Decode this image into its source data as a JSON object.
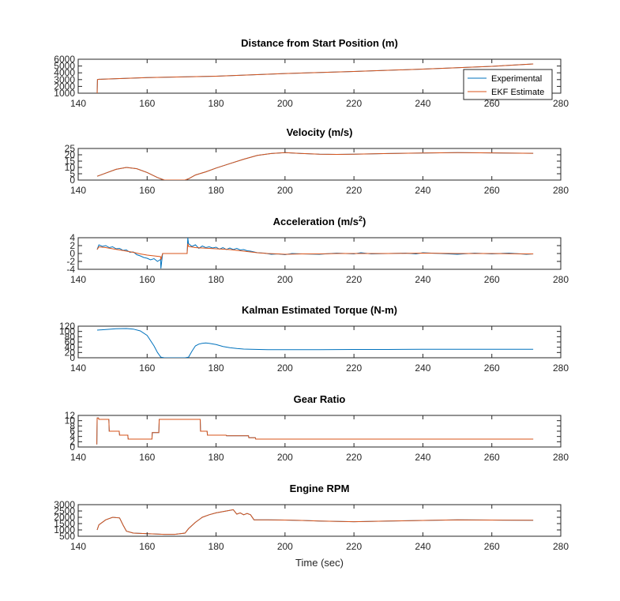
{
  "colors": {
    "experimental": "#0072bd",
    "ekf": "#d95319",
    "axis": "#262626"
  },
  "legend": {
    "placement": "bottom-right of first subplot",
    "entries": [
      "Experimental",
      "EKF Estimate"
    ]
  },
  "chart_data": [
    {
      "type": "line",
      "title": "Distance from Start Position (m)",
      "xlim": [
        140,
        280
      ],
      "ylim": [
        1000,
        6000
      ],
      "xticks": [
        140,
        160,
        180,
        200,
        220,
        240,
        260,
        280
      ],
      "yticks": [
        1000,
        2000,
        3000,
        4000,
        5000,
        6000
      ],
      "series": [
        {
          "name": "Experimental",
          "x": [
            145.5,
            145.6,
            146,
            160,
            180,
            200,
            220,
            240,
            260,
            272
          ],
          "y": [
            1000,
            3000,
            3050,
            3300,
            3500,
            3900,
            4200,
            4550,
            4950,
            5300
          ]
        },
        {
          "name": "EKF Estimate",
          "x": [
            145.5,
            145.6,
            146,
            160,
            180,
            200,
            220,
            240,
            260,
            272
          ],
          "y": [
            1000,
            3000,
            3050,
            3300,
            3500,
            3900,
            4200,
            4550,
            4950,
            5300
          ]
        }
      ]
    },
    {
      "type": "line",
      "title": "Velocity (m/s)",
      "xlim": [
        140,
        280
      ],
      "ylim": [
        0,
        25
      ],
      "xticks": [
        140,
        160,
        180,
        200,
        220,
        240,
        260,
        280
      ],
      "yticks": [
        0,
        5,
        10,
        15,
        20,
        25
      ],
      "series": [
        {
          "name": "Experimental",
          "x": [
            145.5,
            148,
            151,
            154,
            157,
            160,
            163,
            165,
            168,
            171,
            172,
            174,
            177,
            180,
            184,
            188,
            192,
            196,
            200,
            205,
            210,
            215,
            220,
            230,
            240,
            250,
            260,
            272
          ],
          "y": [
            3,
            5.5,
            8.5,
            10,
            9,
            6,
            2,
            0,
            0,
            0,
            1,
            4,
            6.5,
            9.5,
            13,
            16.5,
            19.5,
            21,
            21.7,
            21,
            20.5,
            20.3,
            20.5,
            21,
            21.4,
            21.7,
            21.5,
            21.2
          ]
        },
        {
          "name": "EKF Estimate",
          "x": [
            145.5,
            148,
            151,
            154,
            157,
            160,
            163,
            165,
            168,
            171,
            172,
            174,
            177,
            180,
            184,
            188,
            192,
            196,
            200,
            205,
            210,
            215,
            220,
            230,
            240,
            250,
            260,
            272
          ],
          "y": [
            3,
            5.5,
            8.5,
            10,
            9,
            6,
            2,
            0,
            0,
            0,
            1,
            4,
            6.5,
            9.5,
            13,
            16.5,
            19.5,
            21,
            21.7,
            21,
            20.5,
            20.3,
            20.5,
            21,
            21.4,
            21.7,
            21.5,
            21.2
          ]
        }
      ]
    },
    {
      "type": "line",
      "title": "Acceleration (m/s",
      "title_sup": "2",
      "title_tail": ")",
      "xlim": [
        140,
        280
      ],
      "ylim": [
        -4,
        4
      ],
      "xticks": [
        140,
        160,
        180,
        200,
        220,
        240,
        260,
        280
      ],
      "yticks": [
        -4,
        -2,
        0,
        2,
        4
      ],
      "series": [
        {
          "name": "Experimental",
          "x": [
            145.5,
            146,
            147,
            148,
            149,
            150,
            151,
            152,
            153,
            154,
            155,
            156,
            157,
            158,
            159,
            160,
            161,
            162,
            163,
            163.9,
            164,
            164.5,
            168,
            171.6,
            171.8,
            172,
            173,
            174,
            175,
            176,
            177,
            178,
            179,
            180,
            181,
            182,
            183,
            184,
            185,
            186,
            187,
            188,
            189,
            190,
            191,
            192,
            194,
            196,
            198,
            200,
            202,
            205,
            210,
            215,
            220,
            222,
            225,
            230,
            235,
            238,
            240,
            245,
            250,
            255,
            260,
            265,
            270,
            272
          ],
          "y": [
            1,
            2.2,
            1.8,
            2.0,
            1.5,
            1.7,
            1.2,
            1.3,
            0.8,
            0.9,
            0.3,
            0.4,
            -0.3,
            -0.6,
            -1.0,
            -1.2,
            -1.6,
            -1.3,
            -2.0,
            -1.5,
            -3.8,
            0,
            0,
            0,
            4,
            2.5,
            1.8,
            2.2,
            1.3,
            1.9,
            1.5,
            1.7,
            1.4,
            1.6,
            1.1,
            1.5,
            1.0,
            1.4,
            1.0,
            1.3,
            0.9,
            1.0,
            0.7,
            0.6,
            0.4,
            0.2,
            0.1,
            -0.2,
            -0.1,
            -0.3,
            0,
            -0.1,
            -0.2,
            0.1,
            -0.1,
            0.2,
            -0.1,
            0,
            0.1,
            -0.1,
            0.2,
            0,
            -0.2,
            0.1,
            -0.1,
            0.1,
            -0.2,
            -0.1
          ]
        },
        {
          "name": "EKF Estimate",
          "x": [
            145.5,
            146,
            148,
            150,
            152,
            154,
            156,
            158,
            160,
            162,
            163.9,
            164,
            164.5,
            168,
            171.6,
            171.8,
            172,
            174,
            176,
            178,
            180,
            182,
            184,
            186,
            188,
            190,
            192,
            195,
            198,
            200,
            205,
            210,
            215,
            220,
            230,
            240,
            250,
            260,
            270,
            272
          ],
          "y": [
            1,
            1.7,
            1.5,
            1.2,
            0.9,
            0.6,
            0.3,
            -0.1,
            -0.4,
            -0.6,
            -0.8,
            -1.6,
            0,
            0,
            0,
            2.5,
            1.8,
            1.5,
            1.4,
            1.3,
            1.2,
            1.1,
            1.0,
            0.8,
            0.6,
            0.4,
            0.2,
            0,
            -0.1,
            -0.2,
            -0.1,
            -0.1,
            0,
            0,
            0,
            0.1,
            0,
            0,
            -0.1,
            -0.1
          ]
        }
      ]
    },
    {
      "type": "line",
      "title": "Kalman Estimated Torque (N-m)",
      "xlim": [
        140,
        280
      ],
      "ylim": [
        0,
        120
      ],
      "xticks": [
        140,
        160,
        180,
        200,
        220,
        240,
        260,
        280
      ],
      "yticks": [
        0,
        20,
        40,
        60,
        80,
        100,
        120
      ],
      "series": [
        {
          "name": "Experimental",
          "x": [
            145.5,
            148,
            151,
            154,
            156,
            158,
            160,
            162,
            163,
            164,
            165,
            168,
            171,
            172,
            173,
            174,
            175,
            176,
            177,
            178,
            180,
            182,
            184,
            186,
            188,
            190,
            195,
            200,
            210,
            220,
            230,
            240,
            250,
            260,
            272
          ],
          "y": [
            105,
            107,
            110,
            111,
            109,
            102,
            85,
            45,
            20,
            2,
            0,
            0,
            0,
            2,
            25,
            45,
            52,
            55,
            56,
            55,
            50,
            43,
            38,
            35,
            33,
            32,
            31,
            31,
            31,
            31.5,
            31.5,
            32,
            32,
            32,
            32
          ]
        }
      ]
    },
    {
      "type": "line",
      "title": "Gear Ratio",
      "xlim": [
        140,
        280
      ],
      "ylim": [
        0,
        12
      ],
      "xticks": [
        140,
        160,
        180,
        200,
        220,
        240,
        260,
        280
      ],
      "yticks": [
        0,
        2,
        4,
        6,
        8,
        10,
        12
      ],
      "series": [
        {
          "name": "Experimental",
          "x": [
            145.4,
            145.5,
            145.9,
            146,
            148.9,
            149,
            151.9,
            152,
            154.4,
            154.5,
            161.4,
            161.5,
            163.4,
            163.5,
            175.4,
            175.5,
            177.4,
            177.5,
            182.9,
            183,
            189.4,
            189.5,
            191.4,
            191.5,
            272
          ],
          "y": [
            1,
            11,
            11,
            10.5,
            10.5,
            6,
            6,
            4.5,
            4.5,
            3,
            3,
            5.5,
            5.5,
            10.5,
            10.5,
            6,
            6,
            4.5,
            4.5,
            4.3,
            4.3,
            3.5,
            3.5,
            3,
            3
          ]
        },
        {
          "name": "EKF Estimate",
          "x": [
            145.4,
            145.5,
            145.9,
            146,
            148.9,
            149,
            151.9,
            152,
            154.4,
            154.5,
            161.4,
            161.5,
            163.4,
            163.5,
            175.4,
            175.5,
            177.4,
            177.5,
            182.9,
            183,
            189.4,
            189.5,
            191.4,
            191.5,
            272
          ],
          "y": [
            1,
            11,
            11,
            10.5,
            10.5,
            6,
            6,
            4.5,
            4.5,
            3,
            3,
            5.5,
            5.5,
            10.5,
            10.5,
            6,
            6,
            4.5,
            4.5,
            4.3,
            4.3,
            3.5,
            3.5,
            3,
            3
          ]
        }
      ]
    },
    {
      "type": "line",
      "title": "Engine RPM",
      "xlabel": "Time (sec)",
      "xlim": [
        140,
        280
      ],
      "ylim": [
        500,
        3000
      ],
      "xticks": [
        140,
        160,
        180,
        200,
        220,
        240,
        260,
        280
      ],
      "yticks": [
        500,
        1000,
        1500,
        2000,
        2500,
        3000
      ],
      "series": [
        {
          "name": "Experimental",
          "x": [
            145.5,
            146,
            148,
            150,
            152,
            153,
            154,
            156,
            160,
            165,
            168,
            171,
            172,
            174,
            176,
            178,
            180,
            183,
            185,
            186,
            187,
            188,
            189,
            190,
            191,
            192,
            195,
            200,
            205,
            210,
            220,
            230,
            240,
            250,
            260,
            272
          ],
          "y": [
            1000,
            1400,
            1800,
            2000,
            1950,
            1400,
            900,
            750,
            700,
            650,
            650,
            750,
            1100,
            1600,
            2000,
            2200,
            2350,
            2500,
            2600,
            2250,
            2350,
            2200,
            2300,
            2200,
            1800,
            1800,
            1800,
            1780,
            1750,
            1700,
            1650,
            1700,
            1750,
            1800,
            1780,
            1760
          ]
        },
        {
          "name": "EKF Estimate",
          "x": [
            145.5,
            146,
            148,
            150,
            152,
            153,
            154,
            156,
            160,
            165,
            168,
            171,
            172,
            174,
            176,
            178,
            180,
            183,
            185,
            186,
            187,
            188,
            189,
            190,
            191,
            192,
            195,
            200,
            205,
            210,
            220,
            230,
            240,
            250,
            260,
            272
          ],
          "y": [
            1000,
            1400,
            1800,
            2000,
            1950,
            1400,
            900,
            750,
            700,
            650,
            650,
            750,
            1100,
            1600,
            2000,
            2200,
            2350,
            2500,
            2600,
            2250,
            2350,
            2200,
            2300,
            2200,
            1800,
            1800,
            1800,
            1780,
            1750,
            1700,
            1650,
            1700,
            1750,
            1800,
            1780,
            1760
          ]
        }
      ]
    }
  ]
}
